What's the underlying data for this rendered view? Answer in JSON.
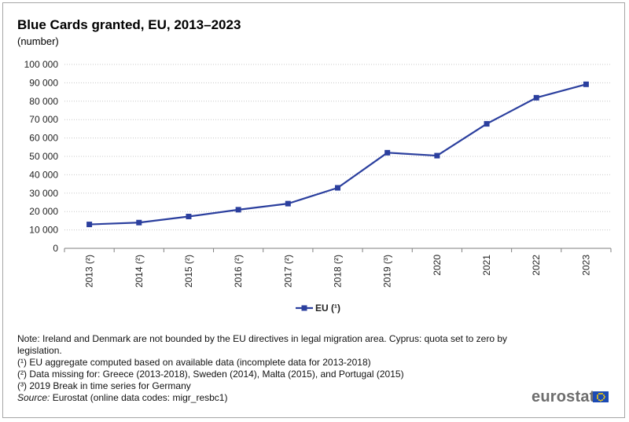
{
  "title": "Blue Cards granted, EU, 2013–2023",
  "subtitle": "(number)",
  "chart_data": {
    "type": "line",
    "x": [
      "2013 (²)",
      "2014 (²)",
      "2015 (²)",
      "2016 (²)",
      "2017 (²)",
      "2018 (²)",
      "2019 (³)",
      "2020",
      "2021",
      "2022",
      "2023"
    ],
    "series": [
      {
        "name": "EU (¹)",
        "values": [
          13000,
          14000,
          17300,
          21000,
          24300,
          32900,
          52000,
          50400,
          67700,
          81900,
          89200
        ]
      }
    ],
    "y_ticks": [
      "0",
      "10 000",
      "20 000",
      "30 000",
      "40 000",
      "50 000",
      "60 000",
      "70 000",
      "80 000",
      "90 000",
      "100 000"
    ],
    "ylim": [
      0,
      100000
    ],
    "grid": true,
    "legend": "bottom-center",
    "colors": {
      "series": "#2b3f9e",
      "grid": "#c8c8c8",
      "axis": "#7f7f7f"
    }
  },
  "notes": {
    "note": "Note: Ireland and Denmark are not bounded by the EU directives in legal migration area. Cyprus: quota set to zero by legislation.",
    "fn1": "(¹) EU aggregate computed based on available data (incomplete data for 2013-2018)",
    "fn2": "(²) Data missing for: Greece (2013-2018), Sweden (2014), Malta (2015), and Portugal (2015)",
    "fn3": "(³) 2019 Break in time series for Germany",
    "source_label": "Source:",
    "source_text": " Eurostat (online data codes: migr_resbc1)"
  },
  "brand": "eurostat"
}
